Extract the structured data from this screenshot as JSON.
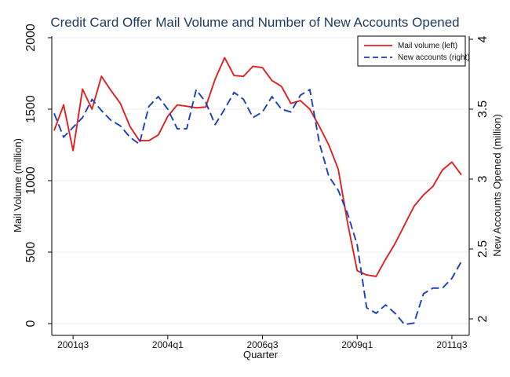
{
  "chart_data": {
    "type": "line",
    "title": "Credit Card Offer Mail Volume and Number of New Accounts Opened",
    "xlabel": "Quarter",
    "ylabel_left": "Mail Volume (million)",
    "ylabel_right": "New Accounts Opened (million)",
    "ylim_left": [
      0,
      2000
    ],
    "ylim_right": [
      2,
      4
    ],
    "y_ticks_left": [
      "0",
      "500",
      "1000",
      "1500",
      "2000"
    ],
    "y_ticks_right": [
      "2",
      "2.5",
      "3",
      "3.5",
      "4"
    ],
    "x_ticks": [
      "2001q3",
      "2004q1",
      "2006q3",
      "2009q1",
      "2011q3"
    ],
    "x_tick_quarters": [
      "2001q3",
      "2004q1",
      "2006q3",
      "2009q1",
      "2011q3"
    ],
    "quarters": [
      "2001q1",
      "2001q2",
      "2001q3",
      "2001q4",
      "2002q1",
      "2002q2",
      "2002q3",
      "2002q4",
      "2003q1",
      "2003q2",
      "2003q3",
      "2003q4",
      "2004q1",
      "2004q2",
      "2004q3",
      "2004q4",
      "2005q1",
      "2005q2",
      "2005q3",
      "2005q4",
      "2006q1",
      "2006q2",
      "2006q3",
      "2006q4",
      "2007q1",
      "2007q2",
      "2007q3",
      "2007q4",
      "2008q1",
      "2008q2",
      "2008q3",
      "2008q4",
      "2009q1",
      "2009q2",
      "2009q3",
      "2009q4",
      "2010q1",
      "2010q2",
      "2010q3",
      "2010q4",
      "2011q1",
      "2011q2",
      "2011q3",
      "2011q4"
    ],
    "grid": "horizontal",
    "legend_position": "top-right",
    "series": [
      {
        "name": "Mail volume (left)",
        "axis": "left",
        "color": "#e02020",
        "dash": "solid",
        "values": [
          1350,
          1530,
          1210,
          1640,
          1500,
          1730,
          1630,
          1540,
          1380,
          1280,
          1280,
          1320,
          1450,
          1530,
          1520,
          1510,
          1515,
          1710,
          1860,
          1735,
          1730,
          1800,
          1790,
          1700,
          1660,
          1540,
          1560,
          1500,
          1380,
          1250,
          1080,
          700,
          370,
          340,
          330,
          450,
          560,
          690,
          820,
          900,
          960,
          1075,
          1130,
          1040
        ]
      },
      {
        "name": "New accounts (right)",
        "axis": "right",
        "color": "#1a3fb8",
        "dash": "dashed",
        "values": [
          3.47,
          3.3,
          3.37,
          3.44,
          3.57,
          3.49,
          3.42,
          3.38,
          3.3,
          3.25,
          3.52,
          3.59,
          3.5,
          3.36,
          3.36,
          3.64,
          3.55,
          3.39,
          3.5,
          3.62,
          3.57,
          3.44,
          3.48,
          3.59,
          3.5,
          3.48,
          3.6,
          3.64,
          3.26,
          3.02,
          2.92,
          2.75,
          2.53,
          2.08,
          2.04,
          2.1,
          2.04,
          1.96,
          1.97,
          2.18,
          2.22,
          2.22,
          2.29,
          2.41
        ]
      }
    ]
  }
}
